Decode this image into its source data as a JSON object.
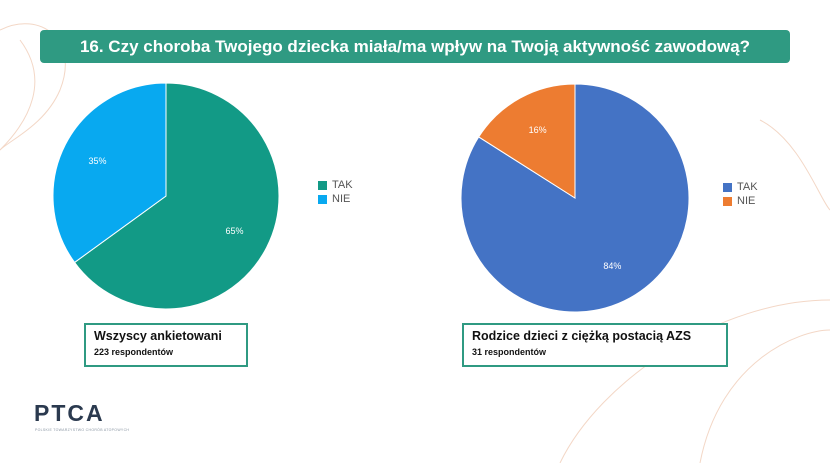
{
  "title": "16. Czy choroba Twojego dziecka miała/ma wpływ na Twoją aktywność zawodową?",
  "chart_data": [
    {
      "type": "pie",
      "categories": [
        "TAK",
        "NIE"
      ],
      "values": [
        65,
        35
      ],
      "labels": [
        "65%",
        "35%"
      ],
      "colors": [
        "#129a86",
        "#08a9f0"
      ],
      "legend": "right",
      "caption": "Wszyscy ankietowani",
      "subcaption": "223 respondentów"
    },
    {
      "type": "pie",
      "categories": [
        "TAK",
        "NIE"
      ],
      "values": [
        84,
        16
      ],
      "labels": [
        "84%",
        "16%"
      ],
      "colors": [
        "#4473c5",
        "#ed7c31"
      ],
      "legend": "right",
      "caption": "Rodzice dzieci z ciężką postacią AZS",
      "subcaption": "31 respondentów"
    }
  ],
  "logo": {
    "text": "PTCA",
    "tagline": "POLSKIE TOWARZYSTWO CHORÓB ATOPOWYCH"
  }
}
